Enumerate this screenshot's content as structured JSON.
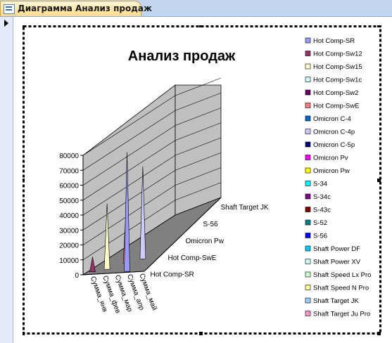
{
  "window": {
    "tab_title": "Диаграмма Анализ продаж",
    "tab_icon": "form-icon",
    "record_pointer_icon": "record-selector-icon"
  },
  "chart_data": {
    "type": "bar",
    "style": "3d-cone",
    "title": "Анализ продаж",
    "categories": [
      "Сумма_янв",
      "Сумма_фев",
      "Сумма_мар",
      "Сумма_апр",
      "Сумма_май"
    ],
    "depth_labels": [
      "Hot Comp-SR",
      "Hot Comp-SwE",
      "Omicron Pw",
      "S-56",
      "Shaft Target JK"
    ],
    "ylim": [
      0,
      80000
    ],
    "yticks": [
      "80000",
      "70000",
      "60000",
      "50000",
      "40000",
      "30000",
      "20000",
      "10000",
      "0"
    ],
    "grid": true,
    "legend_position": "right",
    "series": [
      {
        "name": "Hot Comp-SR",
        "color": "#9999ff",
        "values": [
          0,
          0,
          0,
          80000,
          0
        ]
      },
      {
        "name": "Hot Comp-Sw12",
        "color": "#993366",
        "values": [
          10000,
          0,
          0,
          0,
          0
        ]
      },
      {
        "name": "Hot Comp-Sw15",
        "color": "#ffffcc",
        "values": [
          0,
          44000,
          0,
          0,
          0
        ]
      },
      {
        "name": "Hot Comp-Sw1c",
        "color": "#ccffff",
        "values": [
          0,
          0,
          0,
          0,
          0
        ]
      },
      {
        "name": "Hot Comp-Sw2",
        "color": "#660066",
        "values": [
          0,
          0,
          0,
          0,
          0
        ]
      },
      {
        "name": "Hot Comp-SwE",
        "color": "#ff8080",
        "values": [
          0,
          0,
          36000,
          0,
          0
        ]
      },
      {
        "name": "Omicron C-4",
        "color": "#0066cc",
        "values": [
          0,
          0,
          0,
          0,
          0
        ]
      },
      {
        "name": "Omicron C-4p",
        "color": "#ccccff",
        "values": [
          0,
          0,
          0,
          62000,
          0
        ]
      },
      {
        "name": "Omicron C-5p",
        "color": "#000080",
        "values": [
          0,
          0,
          0,
          0,
          0
        ]
      },
      {
        "name": "Omicron Pv",
        "color": "#ff00ff",
        "values": [
          0,
          0,
          0,
          0,
          0
        ]
      },
      {
        "name": "Omicron Pw",
        "color": "#ffff00",
        "values": [
          0,
          0,
          0,
          0,
          0
        ]
      },
      {
        "name": "S-34",
        "color": "#00ffff",
        "values": [
          0,
          0,
          0,
          0,
          0
        ]
      },
      {
        "name": "S-34c",
        "color": "#800080",
        "values": [
          0,
          0,
          0,
          0,
          0
        ]
      },
      {
        "name": "S-43c",
        "color": "#800000",
        "values": [
          0,
          0,
          0,
          0,
          0
        ]
      },
      {
        "name": "S-52",
        "color": "#008080",
        "values": [
          0,
          0,
          0,
          0,
          0
        ]
      },
      {
        "name": "S-56",
        "color": "#0000ff",
        "values": [
          0,
          0,
          0,
          0,
          0
        ]
      },
      {
        "name": "Shaft Power DF",
        "color": "#00ccff",
        "values": [
          0,
          0,
          0,
          0,
          0
        ]
      },
      {
        "name": "Shaft Power XV",
        "color": "#ccffff",
        "values": [
          0,
          0,
          0,
          0,
          0
        ]
      },
      {
        "name": "Shaft Speed Lx Pro",
        "color": "#ccffcc",
        "values": [
          0,
          0,
          0,
          0,
          0
        ]
      },
      {
        "name": "Shaft Speed N Pro",
        "color": "#ffff99",
        "values": [
          0,
          0,
          0,
          0,
          0
        ]
      },
      {
        "name": "Shaft Target JK",
        "color": "#99ccff",
        "values": [
          0,
          0,
          0,
          0,
          0
        ]
      },
      {
        "name": "Shaft Target Ju Pro",
        "color": "#ff99cc",
        "values": [
          0,
          0,
          0,
          0,
          0
        ]
      }
    ]
  }
}
